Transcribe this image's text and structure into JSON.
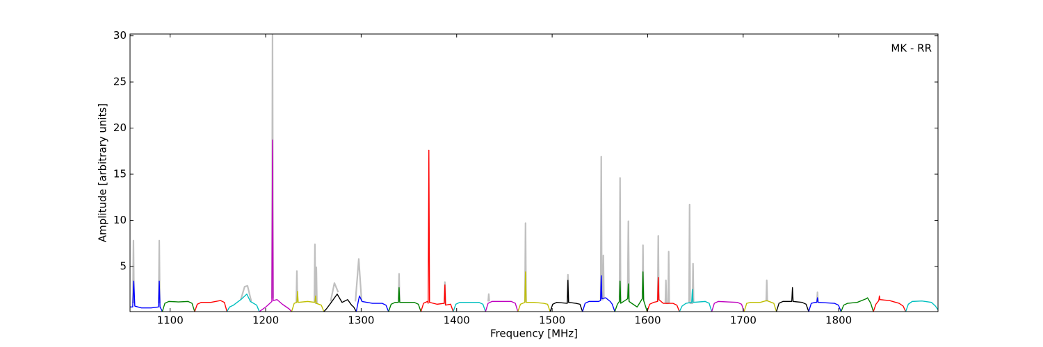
{
  "chart_data": {
    "type": "line",
    "xlabel": "Frequency [MHz]",
    "ylabel": "Amplitude [arbitrary units]",
    "annotation": "MK - RR",
    "xlim": [
      1058,
      1904
    ],
    "ylim": [
      0.1,
      30.2
    ],
    "xticks": [
      1100,
      1200,
      1300,
      1400,
      1500,
      1600,
      1700,
      1800
    ],
    "yticks": [
      5,
      10,
      15,
      20,
      25,
      30
    ],
    "series": [
      {
        "color": "#c0c0c0",
        "x": [
          1061.0,
          1061.6,
          1062.2,
          1075,
          1088.0,
          1088.6,
          1089.2,
          1100,
          1174,
          1178,
          1181,
          1185,
          1195,
          1206.6,
          1207.2,
          1207.8,
          1220,
          1232.1,
          1232.7,
          1233.3,
          1240,
          1251.0,
          1251.6,
          1252.2,
          1252.5,
          1253.1,
          1253.7,
          1260,
          1268,
          1272,
          1276,
          1286,
          1294,
          1297.5,
          1300.5,
          1320,
          1339.1,
          1339.7,
          1340.3,
          1380,
          1387.1,
          1387.7,
          1388.3,
          1420,
          1433.0,
          1433.6,
          1434.2,
          1460,
          1471.5,
          1472.1,
          1472.7,
          1500,
          1515.9,
          1516.5,
          1517.1,
          1540,
          1550.8,
          1551.4,
          1552.0,
          1553.0,
          1553.6,
          1554.2,
          1560,
          1570.5,
          1571.1,
          1571.7,
          1575,
          1579.0,
          1579.8,
          1580.6,
          1590,
          1594.5,
          1595.1,
          1595.7,
          1605,
          1610.5,
          1611.1,
          1611.7,
          1615,
          1618.5,
          1619.1,
          1619.7,
          1621.4,
          1622.0,
          1622.6,
          1630,
          1643.3,
          1643.9,
          1644.5,
          1646.9,
          1647.5,
          1648.1,
          1700,
          1724.1,
          1724.7,
          1725.3,
          1760,
          1777.2,
          1777.8,
          1778.4
        ],
        "values": [
          1.0,
          7.8,
          1.0,
          null,
          1.0,
          7.8,
          1.0,
          null,
          1.4,
          2.8,
          2.9,
          1.2,
          null,
          1.5,
          30.2,
          1.6,
          null,
          1.1,
          4.5,
          1.1,
          null,
          1.1,
          7.4,
          1.2,
          1.0,
          4.9,
          1.0,
          null,
          1.2,
          3.2,
          2.2,
          null,
          1.2,
          5.8,
          1.2,
          null,
          1.1,
          4.2,
          1.1,
          null,
          1.0,
          3.3,
          0.8,
          null,
          1.2,
          2.0,
          1.2,
          null,
          1.1,
          9.7,
          1.1,
          null,
          1.0,
          4.1,
          1.1,
          null,
          1.3,
          16.9,
          1.5,
          1.4,
          6.2,
          1.5,
          null,
          1.2,
          14.6,
          1.0,
          null,
          1.5,
          9.9,
          1.2,
          null,
          1.5,
          7.3,
          1.3,
          null,
          1.2,
          8.3,
          1.4,
          null,
          1.0,
          3.5,
          1.0,
          1.0,
          6.6,
          1.0,
          null,
          1.0,
          11.7,
          1.0,
          1.0,
          5.3,
          1.1,
          null,
          1.2,
          3.5,
          1.2,
          null,
          1.1,
          2.2,
          1.1
        ]
      },
      {
        "color": "#0000ff",
        "x": [
          1058.0,
          1060.8,
          1061.9,
          1063.0,
          1070,
          1080,
          1087.8,
          1088.6,
          1089.4,
          1091.0,
          1091.8
        ],
        "values": [
          0.6,
          0.6,
          3.4,
          0.7,
          0.5,
          0.5,
          0.6,
          3.4,
          0.6,
          0.3,
          0.1
        ]
      },
      {
        "color": "#008000",
        "x": [
          1091.8,
          1094.5,
          1098.6,
          1108.7,
          1118.8,
          1122.9,
          1125.7
        ],
        "values": [
          0.1,
          1.0,
          1.2,
          1.15,
          1.2,
          1.0,
          0.1
        ]
      },
      {
        "color": "#ff0000",
        "x": [
          1125.7,
          1128.4,
          1132.5,
          1142.6,
          1152.7,
          1156.8,
          1159.5
        ],
        "values": [
          0.1,
          0.9,
          1.1,
          1.1,
          1.3,
          1.1,
          0.1
        ]
      },
      {
        "color": "#00bfbf",
        "x": [
          1159.5,
          1162.2,
          1166.3,
          1174,
          1180.3,
          1184,
          1190.6,
          1193.4
        ],
        "values": [
          0.1,
          0.6,
          0.8,
          1.4,
          2.0,
          1.2,
          0.8,
          0.1
        ]
      },
      {
        "color": "#bf00bf",
        "x": [
          1193.4,
          1196.1,
          1200.2,
          1206.5,
          1207.2,
          1207.9,
          1212,
          1217.5,
          1224.5,
          1227.2
        ],
        "values": [
          0.1,
          0.3,
          0.6,
          1.2,
          18.7,
          1.3,
          1.4,
          0.9,
          0.4,
          0.1
        ]
      },
      {
        "color": "#bfbf00",
        "x": [
          1227.2,
          1229.9,
          1232.7,
          1233.4,
          1234.1,
          1244,
          1251.6,
          1252.3,
          1253,
          1258.3,
          1261.0
        ],
        "values": [
          0.1,
          1.0,
          1.1,
          2.3,
          1.1,
          1.2,
          1.1,
          1.8,
          1.0,
          0.8,
          0.1
        ]
      },
      {
        "color": "#000000",
        "x": [
          1261.0,
          1263.7,
          1268,
          1274.9,
          1280,
          1285.8,
          1290,
          1292.2,
          1294.9
        ],
        "values": [
          0.1,
          0.4,
          1.0,
          2.0,
          1.1,
          1.4,
          0.8,
          0.6,
          0.1
        ]
      },
      {
        "color": "#0000ff",
        "x": [
          1294.9,
          1297,
          1298.2,
          1301,
          1311.8,
          1321.9,
          1326,
          1328.7
        ],
        "values": [
          0.1,
          1.2,
          1.8,
          1.2,
          1.0,
          1.0,
          0.8,
          0.1
        ]
      },
      {
        "color": "#008000",
        "x": [
          1328.7,
          1331.4,
          1335.5,
          1339.0,
          1339.7,
          1340.4,
          1345.6,
          1355.7,
          1359.9,
          1362.6
        ],
        "values": [
          0.1,
          0.9,
          1.1,
          1.1,
          2.7,
          1.1,
          1.1,
          1.1,
          0.9,
          0.1
        ]
      },
      {
        "color": "#ff0000",
        "x": [
          1362.6,
          1365.3,
          1369.4,
          1370.2,
          1370.9,
          1371.6,
          1379.5,
          1387.0,
          1387.7,
          1388.4,
          1393.7,
          1396.4
        ],
        "values": [
          0.1,
          1.0,
          1.2,
          1.0,
          17.6,
          1.1,
          0.9,
          1.0,
          3.0,
          0.8,
          0.9,
          0.1
        ]
      },
      {
        "color": "#00bfbf",
        "x": [
          1396.4,
          1399.1,
          1403.2,
          1413.3,
          1423.4,
          1427.5,
          1430.2
        ],
        "values": [
          0.1,
          0.9,
          1.1,
          1.1,
          1.1,
          0.9,
          0.1
        ]
      },
      {
        "color": "#bf00bf",
        "x": [
          1430.2,
          1432.9,
          1437,
          1447.1,
          1457.2,
          1461.4,
          1464.1
        ],
        "values": [
          0.1,
          1.0,
          1.2,
          1.2,
          1.2,
          1.0,
          0.1
        ]
      },
      {
        "color": "#bfbf00",
        "x": [
          1464.1,
          1466.8,
          1471.4,
          1472.1,
          1472.8,
          1481,
          1491.1,
          1495.2,
          1497.9
        ],
        "values": [
          0.1,
          0.9,
          1.1,
          4.4,
          1.1,
          1.1,
          1.0,
          0.9,
          0.1
        ]
      },
      {
        "color": "#000000",
        "x": [
          1497.9,
          1500.6,
          1504.7,
          1515.8,
          1516.5,
          1517.2,
          1524.9,
          1529.1,
          1531.8
        ],
        "values": [
          0.1,
          0.9,
          1.1,
          1.0,
          3.5,
          1.1,
          1.0,
          0.9,
          0.1
        ]
      },
      {
        "color": "#0000ff",
        "x": [
          1531.8,
          1534.5,
          1538.6,
          1548.7,
          1550.7,
          1551.4,
          1552.1,
          1556,
          1560.8,
          1562.9,
          1565.6
        ],
        "values": [
          0.1,
          1.0,
          1.2,
          1.2,
          1.3,
          4.0,
          1.5,
          1.6,
          1.2,
          0.9,
          0.1
        ]
      },
      {
        "color": "#008000",
        "x": [
          1565.6,
          1568.3,
          1570.4,
          1571.1,
          1571.8,
          1579.1,
          1579.8,
          1580.5,
          1589,
          1594.4,
          1595.1,
          1595.8,
          1598,
          1599.4
        ],
        "values": [
          0.1,
          0.9,
          1.2,
          3.4,
          1.0,
          1.5,
          3.1,
          1.2,
          0.6,
          1.5,
          4.4,
          1.3,
          0.6,
          0.1
        ]
      },
      {
        "color": "#ff0000",
        "x": [
          1599.4,
          1602.1,
          1606.2,
          1610.4,
          1611.1,
          1611.8,
          1616.3,
          1626.4,
          1630.6,
          1633.3
        ],
        "values": [
          0.1,
          0.9,
          1.1,
          1.2,
          3.8,
          1.4,
          1.0,
          1.0,
          0.8,
          0.1
        ]
      },
      {
        "color": "#00bfbf",
        "x": [
          1633.3,
          1636,
          1640.1,
          1646.1,
          1646.8,
          1647.5,
          1660.3,
          1664.4,
          1667.1
        ],
        "values": [
          0.1,
          0.7,
          1.0,
          1.1,
          2.5,
          1.1,
          1.2,
          1.0,
          0.1
        ]
      },
      {
        "color": "#bf00bf",
        "x": [
          1667.1,
          1669.8,
          1673.9,
          1684,
          1694.1,
          1698.3,
          1701.0
        ],
        "values": [
          0.1,
          1.0,
          1.2,
          1.15,
          1.1,
          0.9,
          0.1
        ]
      },
      {
        "color": "#bfbf00",
        "x": [
          1701.0,
          1703.7,
          1707.8,
          1717.9,
          1724.7,
          1732.1,
          1734.8
        ],
        "values": [
          0.1,
          1.0,
          1.1,
          1.1,
          1.3,
          1.0,
          0.1
        ]
      },
      {
        "color": "#000000",
        "x": [
          1734.8,
          1737.5,
          1741.6,
          1750.9,
          1751.6,
          1752.3,
          1761.8,
          1765.9,
          1768.6
        ],
        "values": [
          0.1,
          1.0,
          1.2,
          1.2,
          2.7,
          1.2,
          1.1,
          0.9,
          0.1
        ]
      },
      {
        "color": "#0000ff",
        "x": [
          1768.6,
          1771.3,
          1775.4,
          1777.1,
          1777.8,
          1778.5,
          1795.6,
          1799.8,
          1802.5
        ],
        "values": [
          0.1,
          1.0,
          1.1,
          1.1,
          1.6,
          1.1,
          1.0,
          0.8,
          0.1
        ]
      },
      {
        "color": "#008000",
        "x": [
          1802.5,
          1805.2,
          1809.3,
          1819.4,
          1829,
          1830.2,
          1833.6,
          1836.3
        ],
        "values": [
          0.1,
          0.8,
          1.0,
          1.1,
          1.5,
          1.6,
          1.0,
          0.1
        ]
      },
      {
        "color": "#ff0000",
        "x": [
          1836.3,
          1839,
          1842,
          1842.6,
          1843.2,
          1853.2,
          1863.3,
          1867.5,
          1870.2
        ],
        "values": [
          0.1,
          0.9,
          1.3,
          1.8,
          1.4,
          1.3,
          1.0,
          0.7,
          0.1
        ]
      },
      {
        "color": "#00bfbf",
        "x": [
          1870.2,
          1872.9,
          1877,
          1887.1,
          1897.2,
          1901.3,
          1904.0
        ],
        "values": [
          0.1,
          0.9,
          1.2,
          1.25,
          1.1,
          0.7,
          0.3
        ]
      }
    ]
  }
}
